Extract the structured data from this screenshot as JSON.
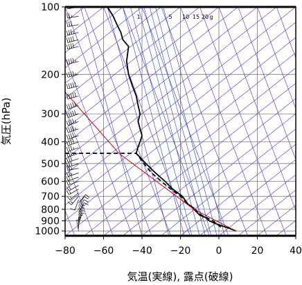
{
  "chart_data": {
    "type": "line",
    "title": "",
    "xlabel": "気温(実線), 露点(破線)",
    "ylabel": "気圧(hPa)",
    "xlim": [
      -80,
      40
    ],
    "ylim": [
      1050,
      100
    ],
    "y_scale": "log",
    "x_ticks": [
      "−80",
      "−60",
      "−40",
      "−20",
      "0",
      "20",
      "40"
    ],
    "x_tick_values": [
      -80,
      -60,
      -40,
      -20,
      0,
      20,
      40
    ],
    "y_ticks": [
      "100",
      "200",
      "300",
      "400",
      "500",
      "600",
      "700",
      "800",
      "900",
      "1000"
    ],
    "y_tick_values": [
      100,
      200,
      300,
      400,
      500,
      600,
      700,
      800,
      900,
      1000
    ],
    "mixing_ratio_labels": [
      {
        "text": "1",
        "value": 1
      },
      {
        "text": "5",
        "value": 5
      },
      {
        "text": "10",
        "value": 10
      },
      {
        "text": "15",
        "value": 15
      },
      {
        "text": "20",
        "value": 20
      },
      {
        "text": "g",
        "value": null
      }
    ],
    "grid": true,
    "series": [
      {
        "kind": "temperature",
        "style": "solid",
        "color": "#000000",
        "points": [
          [
            9,
            1000
          ],
          [
            5,
            970
          ],
          [
            2,
            950
          ],
          [
            -2,
            925
          ],
          [
            -5,
            900
          ],
          [
            -7,
            870
          ],
          [
            -10,
            850
          ],
          [
            -13,
            800
          ],
          [
            -13,
            790
          ],
          [
            -16,
            760
          ],
          [
            -19,
            700
          ],
          [
            -24,
            650
          ],
          [
            -28,
            600
          ],
          [
            -33,
            550
          ],
          [
            -38,
            500
          ],
          [
            -43,
            450
          ],
          [
            -42,
            420
          ],
          [
            -41,
            400
          ],
          [
            -40,
            375
          ],
          [
            -41,
            350
          ],
          [
            -42,
            325
          ],
          [
            -41,
            300
          ],
          [
            -42,
            275
          ],
          [
            -43,
            250
          ],
          [
            -45,
            225
          ],
          [
            -47,
            200
          ],
          [
            -48,
            175
          ],
          [
            -47,
            150
          ],
          [
            -50,
            140
          ],
          [
            -51,
            130
          ],
          [
            -53,
            120
          ],
          [
            -55,
            110
          ],
          [
            -58,
            100
          ]
        ]
      },
      {
        "kind": "dewpoint",
        "style": "dashed",
        "color": "#000000",
        "points": [
          [
            1,
            960
          ],
          [
            -1,
            930
          ],
          [
            -3,
            900
          ],
          [
            -9,
            850
          ],
          [
            -13,
            790
          ],
          [
            -16,
            760
          ],
          [
            -20,
            700
          ],
          [
            -25,
            650
          ],
          [
            -30,
            600
          ],
          [
            -35,
            550
          ],
          [
            -39,
            500
          ],
          [
            -43,
            450
          ],
          [
            -52,
            450
          ],
          [
            -63,
            450
          ],
          [
            -70,
            450
          ],
          [
            -80,
            450
          ]
        ]
      },
      {
        "kind": "parcel",
        "style": "solid",
        "color": "#cc0000",
        "points": [
          [
            9,
            1000
          ],
          [
            -13,
            800
          ],
          [
            -52,
            450
          ],
          [
            -88,
            200
          ]
        ]
      }
    ],
    "wind_barbs": {
      "x_position": "left",
      "speed_unit": "kt",
      "levels": [
        {
          "p": 1000,
          "dir": 350,
          "spd": 5
        },
        {
          "p": 975,
          "dir": 0,
          "spd": 5
        },
        {
          "p": 950,
          "dir": 10,
          "spd": 5
        },
        {
          "p": 925,
          "dir": 20,
          "spd": 5
        },
        {
          "p": 900,
          "dir": 20,
          "spd": 5
        },
        {
          "p": 875,
          "dir": 20,
          "spd": 5
        },
        {
          "p": 850,
          "dir": 20,
          "spd": 5
        },
        {
          "p": 825,
          "dir": 30,
          "spd": 10
        },
        {
          "p": 800,
          "dir": 30,
          "spd": 10
        },
        {
          "p": 775,
          "dir": 30,
          "spd": 10
        },
        {
          "p": 750,
          "dir": 40,
          "spd": 10
        },
        {
          "p": 725,
          "dir": 200,
          "spd": 10
        },
        {
          "p": 700,
          "dir": 220,
          "spd": 15
        },
        {
          "p": 675,
          "dir": 230,
          "spd": 15
        },
        {
          "p": 650,
          "dir": 240,
          "spd": 15
        },
        {
          "p": 625,
          "dir": 240,
          "spd": 20
        },
        {
          "p": 600,
          "dir": 250,
          "spd": 20
        },
        {
          "p": 575,
          "dir": 250,
          "spd": 20
        },
        {
          "p": 550,
          "dir": 250,
          "spd": 25
        },
        {
          "p": 525,
          "dir": 260,
          "spd": 25
        },
        {
          "p": 500,
          "dir": 250,
          "spd": 30
        },
        {
          "p": 475,
          "dir": 250,
          "spd": 30
        },
        {
          "p": 450,
          "dir": 250,
          "spd": 35
        },
        {
          "p": 425,
          "dir": 250,
          "spd": 35
        },
        {
          "p": 400,
          "dir": 250,
          "spd": 40
        },
        {
          "p": 375,
          "dir": 250,
          "spd": 40
        },
        {
          "p": 350,
          "dir": 250,
          "spd": 45
        },
        {
          "p": 325,
          "dir": 250,
          "spd": 45
        },
        {
          "p": 300,
          "dir": 250,
          "spd": 50
        },
        {
          "p": 275,
          "dir": 250,
          "spd": 50
        },
        {
          "p": 250,
          "dir": 255,
          "spd": 50
        },
        {
          "p": 225,
          "dir": 255,
          "spd": 50
        },
        {
          "p": 200,
          "dir": 255,
          "spd": 45
        },
        {
          "p": 175,
          "dir": 255,
          "spd": 45
        },
        {
          "p": 150,
          "dir": 255,
          "spd": 40
        },
        {
          "p": 140,
          "dir": 255,
          "spd": 40
        },
        {
          "p": 130,
          "dir": 255,
          "spd": 35
        },
        {
          "p": 120,
          "dir": 260,
          "spd": 30
        },
        {
          "p": 110,
          "dir": 260,
          "spd": 25
        },
        {
          "p": 100,
          "dir": 260,
          "spd": 25
        }
      ]
    }
  },
  "colors": {
    "background": "#ffffff",
    "grid": "#666666",
    "isotherm_skewed": "#3333cc",
    "parcel": "#cc0000",
    "trace": "#000000"
  }
}
